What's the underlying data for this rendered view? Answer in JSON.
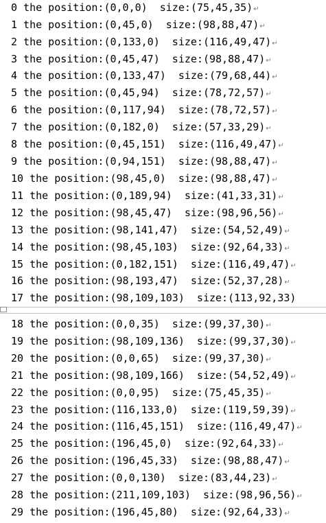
{
  "lines": [
    "0 the position:(0,0,0)  size:(75,45,35)",
    "1 the position:(0,45,0)  size:(98,88,47)",
    "2 the position:(0,133,0)  size:(116,49,47)",
    "3 the position:(0,45,47)  size:(98,88,47)",
    "4 the position:(0,133,47)  size:(79,68,44)",
    "5 the position:(0,45,94)  size:(78,72,57)",
    "6 the position:(0,117,94)  size:(78,72,57)",
    "7 the position:(0,182,0)  size:(57,33,29)",
    "8 the position:(0,45,151)  size:(116,49,47)",
    "9 the position:(0,94,151)  size:(98,88,47)",
    "10 the position:(98,45,0)  size:(98,88,47)",
    "11 the position:(0,189,94)  size:(41,33,31)",
    "12 the position:(98,45,47)  size:(98,96,56)",
    "13 the position:(98,141,47)  size:(54,52,49)",
    "14 the position:(98,45,103)  size:(92,64,33)",
    "15 the position:(0,182,151)  size:(116,49,47)",
    "16 the position:(98,193,47)  size:(52,37,28)",
    "17 the position:(98,109,103)  size:(113,92,33)",
    "18 the position:(0,0,35)  size:(99,37,30)",
    "19 the position:(98,109,136)  size:(99,37,30)",
    "20 the position:(0,0,65)  size:(99,37,30)",
    "21 the position:(98,109,166)  size:(54,52,49)",
    "22 the position:(0,0,95)  size:(75,45,35)",
    "23 the position:(116,133,0)  size:(119,59,39)",
    "24 the position:(116,45,151)  size:(116,49,47)",
    "25 the position:(196,45,0)  size:(92,64,33)",
    "26 the position:(196,45,33)  size:(98,88,47)",
    "27 the position:(0,0,130)  size:(83,44,23)",
    "28 the position:(211,109,103)  size:(98,96,56)",
    "29 the position:(196,45,80)  size:(92,64,33)"
  ],
  "paragraph_mark": "↵"
}
